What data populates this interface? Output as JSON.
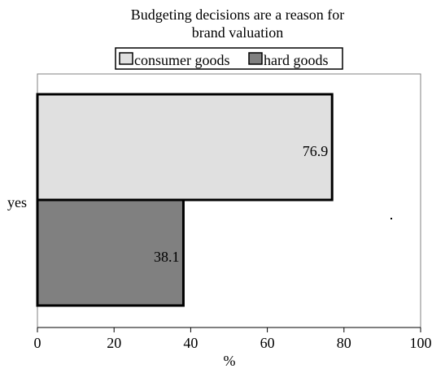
{
  "chart_data": {
    "type": "bar",
    "orientation": "horizontal",
    "title_lines": [
      "Budgeting decisions are a reason for",
      "brand valuation"
    ],
    "categories": [
      "yes"
    ],
    "series": [
      {
        "name": "consumer goods",
        "values": [
          76.9
        ],
        "color": "#e0e0e0"
      },
      {
        "name": "hard goods",
        "values": [
          38.1
        ],
        "color": "#808080"
      }
    ],
    "xlabel": "%",
    "ylabel": "",
    "xlim": [
      0,
      100
    ],
    "xticks": [
      0,
      20,
      40,
      60,
      80,
      100
    ],
    "grid": false,
    "legend_position": "top"
  }
}
